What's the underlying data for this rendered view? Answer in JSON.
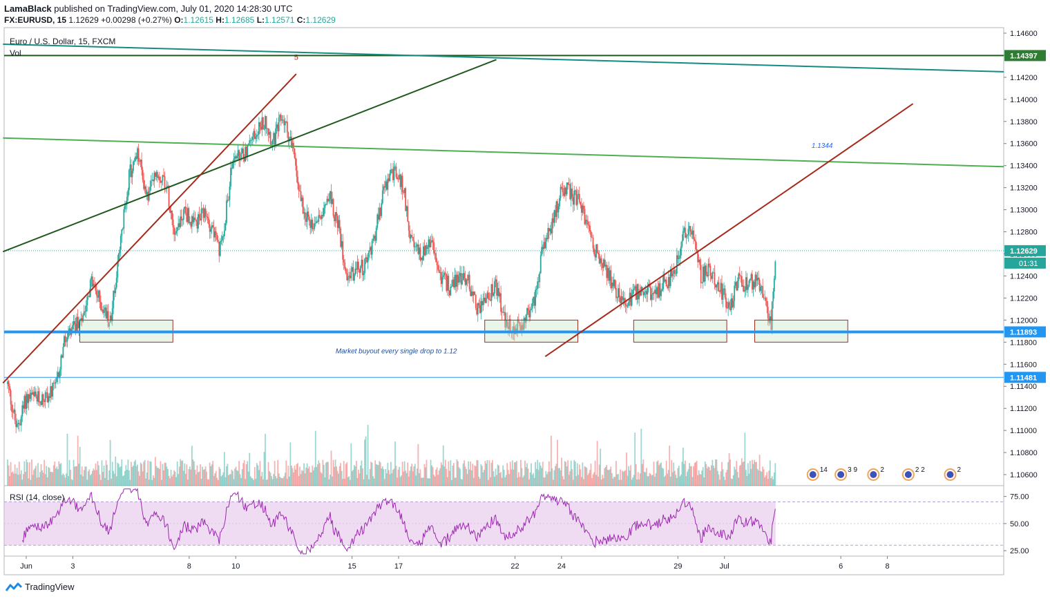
{
  "header": {
    "publisher": "LamaBlack",
    "published_text": "published on TradingView.com, July 01, 2020 14:28:30 UTC",
    "symbol": "FX:EURUSD, 15",
    "last": "1.12629",
    "change": "+0.00298 (+0.27%)",
    "o_label": "O:",
    "o_value": "1.12615",
    "h_label": "H:",
    "h_value": "1.12685",
    "l_label": "L:",
    "l_value": "1.12571",
    "c_label": "C:",
    "c_value": "1.12629"
  },
  "pane": {
    "title": "Euro / U.S. Dollar, 15, FXCM",
    "vol_label": "Vol",
    "rsi_label": "RSI (14, close)"
  },
  "footer": {
    "brand": "TradingView"
  },
  "colors": {
    "up": "#26a69a",
    "down": "#ef5350",
    "rsi": "#9c27b0",
    "support": "#2196f3",
    "brown": "#a52a1c",
    "darkgreen": "#1e5a1e",
    "lightgreen": "#4caf50",
    "teal": "#138a82"
  },
  "chart_data": {
    "type": "candlestick",
    "price_axis": {
      "ticks": [
        "1.14600",
        "1.14400",
        "1.14200",
        "1.14000",
        "1.13800",
        "1.13600",
        "1.13400",
        "1.13200",
        "1.13000",
        "1.12800",
        "1.12600",
        "1.12400",
        "1.12200",
        "1.12000",
        "1.11800",
        "1.11600",
        "1.11400",
        "1.11200",
        "1.11000",
        "1.10800",
        "1.10600"
      ],
      "ylim": [
        1.105,
        1.1465
      ]
    },
    "rsi_axis": {
      "ticks": [
        "75.00",
        "50.00",
        "25.00"
      ],
      "ylim": [
        20,
        85
      ],
      "band": [
        30,
        70
      ]
    },
    "time_axis": {
      "labels": [
        "Jun",
        "3",
        "8",
        "10",
        "15",
        "17",
        "22",
        "24",
        "29",
        "Jul",
        "6",
        "8"
      ],
      "days": [
        1,
        3,
        8,
        10,
        15,
        17,
        22,
        24,
        29,
        31,
        36,
        38
      ]
    },
    "price_path": [
      [
        0.2,
        1.1142
      ],
      [
        0.6,
        1.11
      ],
      [
        1.0,
        1.113
      ],
      [
        1.5,
        1.1128
      ],
      [
        2.0,
        1.1132
      ],
      [
        2.3,
        1.114
      ],
      [
        2.6,
        1.1178
      ],
      [
        3.0,
        1.119
      ],
      [
        3.4,
        1.1205
      ],
      [
        3.8,
        1.1235
      ],
      [
        4.2,
        1.1215
      ],
      [
        4.6,
        1.1198
      ],
      [
        5.0,
        1.126
      ],
      [
        5.4,
        1.133
      ],
      [
        5.8,
        1.135
      ],
      [
        6.2,
        1.131
      ],
      [
        6.6,
        1.1335
      ],
      [
        7.0,
        1.1325
      ],
      [
        7.4,
        1.128
      ],
      [
        7.8,
        1.13
      ],
      [
        8.2,
        1.1285
      ],
      [
        8.6,
        1.1295
      ],
      [
        9.0,
        1.1285
      ],
      [
        9.3,
        1.126
      ],
      [
        9.6,
        1.13
      ],
      [
        9.9,
        1.135
      ],
      [
        10.2,
        1.1345
      ],
      [
        10.6,
        1.136
      ],
      [
        11.0,
        1.1375
      ],
      [
        11.3,
        1.138
      ],
      [
        11.6,
        1.136
      ],
      [
        12.0,
        1.1385
      ],
      [
        12.4,
        1.136
      ],
      [
        12.8,
        1.131
      ],
      [
        13.2,
        1.1285
      ],
      [
        13.6,
        1.1295
      ],
      [
        14.0,
        1.1315
      ],
      [
        14.4,
        1.1285
      ],
      [
        14.8,
        1.124
      ],
      [
        15.2,
        1.1245
      ],
      [
        15.6,
        1.125
      ],
      [
        16.0,
        1.128
      ],
      [
        16.4,
        1.132
      ],
      [
        16.8,
        1.1335
      ],
      [
        17.2,
        1.132
      ],
      [
        17.6,
        1.1265
      ],
      [
        18.0,
        1.126
      ],
      [
        18.4,
        1.127
      ],
      [
        18.8,
        1.124
      ],
      [
        19.2,
        1.123
      ],
      [
        19.6,
        1.124
      ],
      [
        20.0,
        1.1235
      ],
      [
        20.4,
        1.121
      ],
      [
        20.8,
        1.122
      ],
      [
        21.2,
        1.123
      ],
      [
        21.6,
        1.1195
      ],
      [
        22.0,
        1.119
      ],
      [
        22.4,
        1.12
      ],
      [
        22.8,
        1.1215
      ],
      [
        23.2,
        1.1265
      ],
      [
        23.6,
        1.1285
      ],
      [
        24.0,
        1.132
      ],
      [
        24.4,
        1.1315
      ],
      [
        24.8,
        1.1305
      ],
      [
        25.2,
        1.128
      ],
      [
        25.6,
        1.1255
      ],
      [
        26.0,
        1.124
      ],
      [
        26.4,
        1.1225
      ],
      [
        26.8,
        1.1215
      ],
      [
        27.2,
        1.1225
      ],
      [
        27.6,
        1.123
      ],
      [
        28.0,
        1.122
      ],
      [
        28.4,
        1.1235
      ],
      [
        28.8,
        1.124
      ],
      [
        29.2,
        1.1275
      ],
      [
        29.6,
        1.1285
      ],
      [
        30.0,
        1.124
      ],
      [
        30.4,
        1.1245
      ],
      [
        30.8,
        1.123
      ],
      [
        31.2,
        1.121
      ],
      [
        31.6,
        1.1235
      ],
      [
        32.0,
        1.123
      ],
      [
        32.4,
        1.124
      ],
      [
        32.8,
        1.121
      ],
      [
        33.0,
        1.1195
      ],
      [
        33.2,
        1.1263
      ]
    ],
    "levels": [
      {
        "price": 1.14397,
        "label": "1.14397",
        "style": "darkgreen"
      },
      {
        "price": 1.12629,
        "label": "1.12629",
        "style": "last"
      },
      {
        "price": 1.11893,
        "label": "1.11893",
        "style": "support"
      },
      {
        "price": 1.11481,
        "label": "1.11481",
        "style": "blue"
      }
    ],
    "countdown": "01:31",
    "trendlines": [
      {
        "style": "teal",
        "from": [
          0.0,
          1.145
        ],
        "to": [
          45.0,
          1.1425
        ]
      },
      {
        "style": "lightgreen",
        "from": [
          0.0,
          1.1365
        ],
        "to": [
          45.0,
          1.1339
        ]
      },
      {
        "style": "darkgreen",
        "from": [
          0.0,
          1.1262
        ],
        "to": [
          21.2,
          1.1436
        ]
      },
      {
        "style": "brown",
        "from": [
          0.0,
          1.1143
        ],
        "to": [
          12.6,
          1.1423
        ]
      },
      {
        "style": "brown",
        "from": [
          23.3,
          1.1167
        ],
        "to": [
          39.1,
          1.1396
        ]
      }
    ],
    "boxes": [
      {
        "from": [
          3.3,
          1.12
        ],
        "to": [
          7.3,
          1.118
        ]
      },
      {
        "from": [
          20.7,
          1.12
        ],
        "to": [
          24.7,
          1.118
        ]
      },
      {
        "from": [
          27.1,
          1.12
        ],
        "to": [
          31.1,
          1.118
        ]
      },
      {
        "from": [
          32.3,
          1.12
        ],
        "to": [
          36.3,
          1.118
        ]
      }
    ],
    "annotations": [
      {
        "text": "5",
        "day": 12.6,
        "price": 1.1436,
        "color": "#a52a1c"
      },
      {
        "text": "1.1344",
        "day": 35.2,
        "price": 1.1356,
        "color": "#2962ff"
      },
      {
        "text": "Market buyout every single drop to 1.12",
        "day": 16.9,
        "price": 1.117,
        "color": "#1f4e99"
      }
    ],
    "events": [
      {
        "day": 34.8,
        "count": "14"
      },
      {
        "day": 36.0,
        "count": "3 9"
      },
      {
        "day": 37.4,
        "count": "2"
      },
      {
        "day": 38.9,
        "count": "2 2"
      },
      {
        "day": 40.7,
        "count": "2"
      }
    ]
  }
}
